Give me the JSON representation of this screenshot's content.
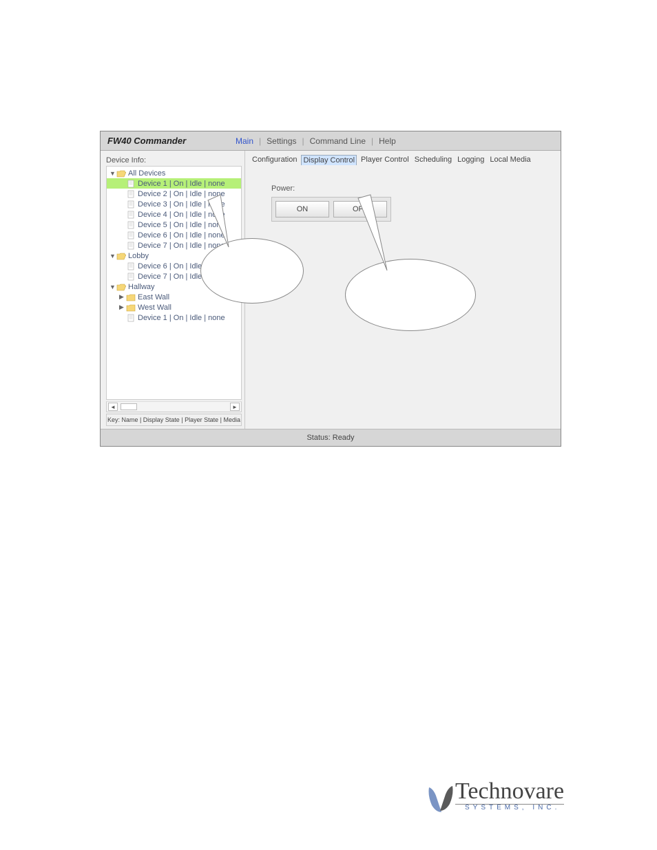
{
  "app": {
    "title": "FW40 Commander",
    "menu": [
      "Main",
      "Settings",
      "Command Line",
      "Help"
    ],
    "menu_active_index": 0
  },
  "colors": {
    "window_bg": "#d6d6d6",
    "pane_bg": "#f0f0f0",
    "tree_selected_bg": "#b6f078",
    "tree_text": "#4a5a7a",
    "tab_active_bg": "#d0e4ff",
    "menu_active": "#3355cc",
    "logo_tagline": "#4a6aa8"
  },
  "left": {
    "label": "Device Info:",
    "key": "Key: Name | Display State | Player State | Media",
    "tree": [
      {
        "level": 0,
        "type": "folder-open",
        "toggle": "▼",
        "label": "All Devices"
      },
      {
        "level": 1,
        "type": "file",
        "label": "Device 1 | On | Idle | none",
        "selected": true
      },
      {
        "level": 1,
        "type": "file",
        "label": "Device 2 | On | Idle | none"
      },
      {
        "level": 1,
        "type": "file",
        "label": "Device 3 | On | Idle | none"
      },
      {
        "level": 1,
        "type": "file",
        "label": "Device 4 | On | Idle | none"
      },
      {
        "level": 1,
        "type": "file",
        "label": "Device 5 | On | Idle | none"
      },
      {
        "level": 1,
        "type": "file",
        "label": "Device 6 | On | Idle | none"
      },
      {
        "level": 1,
        "type": "file",
        "label": "Device 7 | On | Idle | none"
      },
      {
        "level": 0,
        "type": "folder-open",
        "toggle": "▼",
        "label": "Lobby"
      },
      {
        "level": 1,
        "type": "file",
        "label": "Device 6 | On | Idle | none"
      },
      {
        "level": 1,
        "type": "file",
        "label": "Device 7 | On | Idle | none"
      },
      {
        "level": 0,
        "type": "folder-open",
        "toggle": "▼",
        "label": "Hallway"
      },
      {
        "level": 1,
        "type": "folder-closed",
        "toggle": "▶",
        "label": "East Wall"
      },
      {
        "level": 1,
        "type": "folder-closed",
        "toggle": "▶",
        "label": "West Wall"
      },
      {
        "level": 1,
        "type": "file",
        "label": "Device 1 | On | Idle | none"
      }
    ]
  },
  "right": {
    "tabs": [
      "Configuration",
      "Display Control",
      "Player Control",
      "Scheduling",
      "Logging",
      "Local Media"
    ],
    "tab_active_index": 1,
    "power_label": "Power:",
    "buttons": {
      "on": "ON",
      "off": "OFF"
    }
  },
  "status": {
    "label": "Status:",
    "value": "Ready"
  },
  "logo": {
    "word": "Technovare",
    "tagline": "SYSTEMS, INC."
  }
}
